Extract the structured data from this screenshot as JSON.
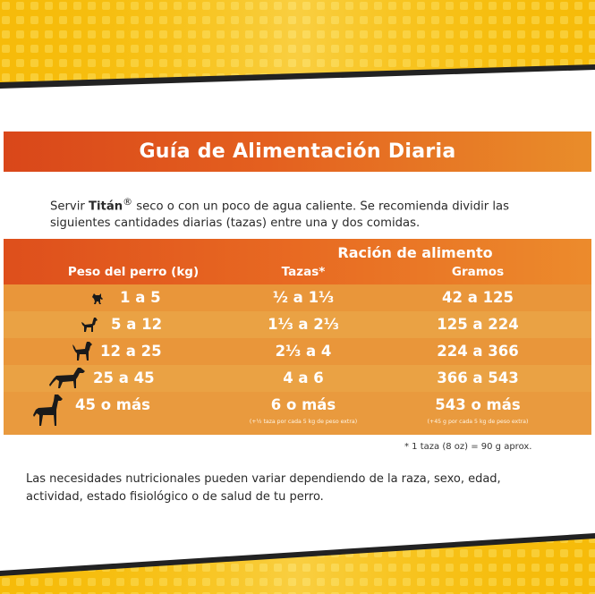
{
  "title": "Guía de Alimentación Diaria",
  "intro": {
    "prefix": "Servir ",
    "brand": "Titán",
    "registered": "®",
    "text": " seco o con un poco de agua caliente. Se recomienda dividir las siguientes cantidades diarias (tazas) entre una y dos comidas."
  },
  "table": {
    "group_header": "Ración de alimento",
    "col_peso": "Peso del perro (kg)",
    "col_tazas": "Tazas*",
    "col_gramos": "Gramos",
    "rows": [
      {
        "peso": "1 a 5",
        "tazas": "½ a 1⅓",
        "gramos": "42 a 125",
        "icon": "tiny-dog-icon"
      },
      {
        "peso": "5 a 12",
        "tazas": "1⅓ a 2⅓",
        "gramos": "125 a 224",
        "icon": "small-dog-icon"
      },
      {
        "peso": "12 a 25",
        "tazas": "2⅓ a 4",
        "gramos": "224 a 366",
        "icon": "medium-dog-icon"
      },
      {
        "peso": "25 a 45",
        "tazas": "4 a 6",
        "gramos": "366 a 543",
        "icon": "large-dog-icon"
      },
      {
        "peso": "45 o más",
        "tazas": "6 o más",
        "gramos": "543 o más",
        "icon": "giant-dog-icon",
        "tazas_note": "(+½ taza por cada 5 kg de peso extra)",
        "gramos_note": "(+45 g por cada 5 kg de peso extra)"
      }
    ]
  },
  "footnote": "* 1 taza (8 oz) = 90 g aprox.",
  "disclaimer": "Las necesidades nutricionales pueden variar dependiendo de la raza, sexo, edad, actividad, estado fisiológico o de salud de tu perro.",
  "colors": {
    "header_orange": "#e4601f",
    "row_orange": "#e9963a",
    "band_yellow": "#f7c400",
    "stripe_dark": "#222222"
  }
}
